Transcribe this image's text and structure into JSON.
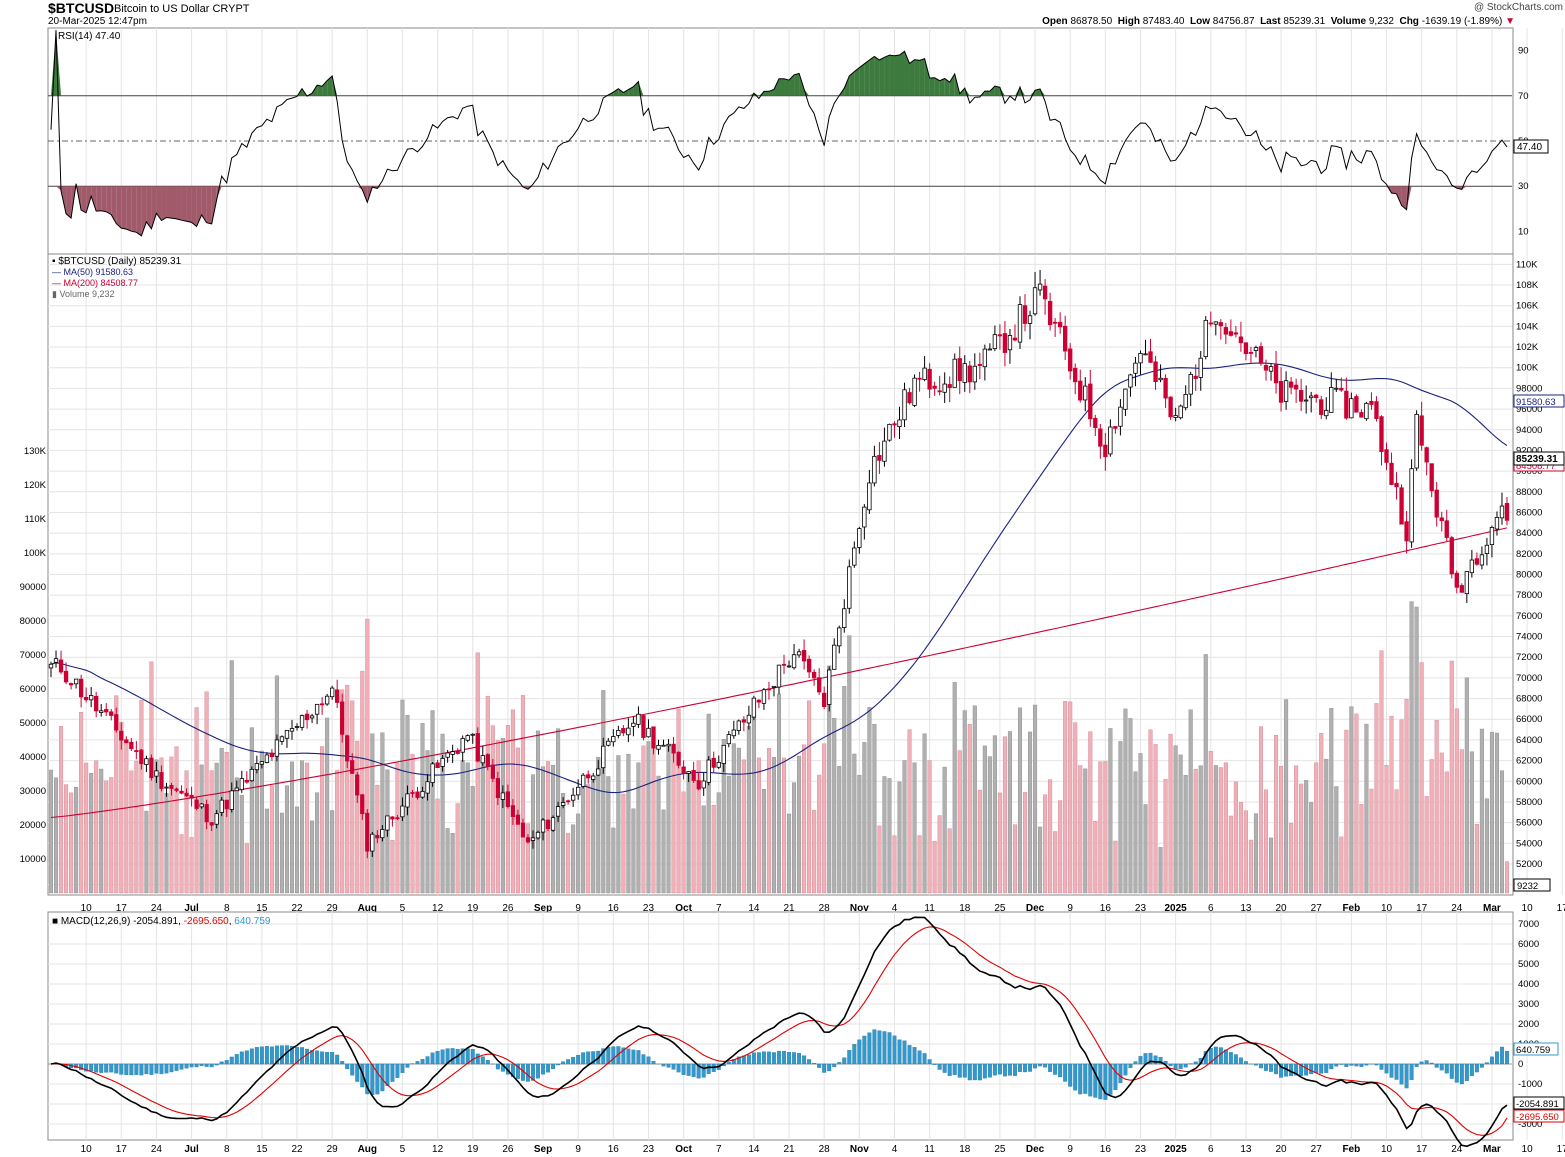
{
  "header": {
    "symbol": "$BTCUSD",
    "name": "Bitcoin to US Dollar",
    "exchange": "CRYPT",
    "datetime": "20-Mar-2025 12:47pm",
    "watermark": "@ StockCharts.com",
    "quote": {
      "open_label": "Open",
      "open": "86878.50",
      "high_label": "High",
      "high": "87483.40",
      "low_label": "Low",
      "low": "84756.87",
      "last_label": "Last",
      "last": "85239.31",
      "volume_label": "Volume",
      "volume": "9,232",
      "chg_label": "Chg",
      "chg": "-1639.19 (-1.89%)"
    }
  },
  "rsi_panel": {
    "legend": "RSI(14) 47.40",
    "current_tag": "47.40",
    "ticks": [
      "90",
      "70",
      "50",
      "30",
      "10"
    ]
  },
  "price_panel": {
    "legend_main": "$BTCUSD (Daily) 85239.31",
    "legend_ma50": "MA(50) 91580.63",
    "legend_ma200": "MA(200) 84508.77",
    "legend_volume": "Volume 9,232",
    "tags": {
      "ma50": "91580.63",
      "last": "85239.31",
      "ma200": "84508.77",
      "volume": "9232"
    },
    "price_ticks": [
      "110K",
      "108K",
      "106K",
      "104K",
      "102K",
      "100K",
      "98000",
      "96000",
      "94000",
      "92000",
      "90000",
      "88000",
      "86000",
      "84000",
      "82000",
      "80000",
      "78000",
      "76000",
      "74000",
      "72000",
      "70000",
      "68000",
      "66000",
      "64000",
      "62000",
      "60000",
      "58000",
      "56000",
      "54000",
      "52000",
      "50000"
    ],
    "volume_ticks": [
      "130K",
      "120K",
      "110K",
      "100K",
      "90000",
      "80000",
      "70000",
      "60000",
      "50000",
      "40000",
      "30000",
      "20000",
      "10000"
    ],
    "date_labels": [
      {
        "label": "10",
        "bold": false
      },
      {
        "label": "17",
        "bold": false
      },
      {
        "label": "24",
        "bold": false
      },
      {
        "label": "Jul",
        "bold": true
      },
      {
        "label": "8",
        "bold": false
      },
      {
        "label": "15",
        "bold": false
      },
      {
        "label": "22",
        "bold": false
      },
      {
        "label": "29",
        "bold": false
      },
      {
        "label": "Aug",
        "bold": true
      },
      {
        "label": "5",
        "bold": false
      },
      {
        "label": "12",
        "bold": false
      },
      {
        "label": "19",
        "bold": false
      },
      {
        "label": "26",
        "bold": false
      },
      {
        "label": "Sep",
        "bold": true
      },
      {
        "label": "9",
        "bold": false
      },
      {
        "label": "16",
        "bold": false
      },
      {
        "label": "23",
        "bold": false
      },
      {
        "label": "Oct",
        "bold": true
      },
      {
        "label": "7",
        "bold": false
      },
      {
        "label": "14",
        "bold": false
      },
      {
        "label": "21",
        "bold": false
      },
      {
        "label": "28",
        "bold": false
      },
      {
        "label": "Nov",
        "bold": true
      },
      {
        "label": "4",
        "bold": false
      },
      {
        "label": "11",
        "bold": false
      },
      {
        "label": "18",
        "bold": false
      },
      {
        "label": "25",
        "bold": false
      },
      {
        "label": "Dec",
        "bold": true
      },
      {
        "label": "9",
        "bold": false
      },
      {
        "label": "16",
        "bold": false
      },
      {
        "label": "23",
        "bold": false
      },
      {
        "label": "2025",
        "bold": true
      },
      {
        "label": "6",
        "bold": false
      },
      {
        "label": "13",
        "bold": false
      },
      {
        "label": "20",
        "bold": false
      },
      {
        "label": "27",
        "bold": false
      },
      {
        "label": "Feb",
        "bold": true
      },
      {
        "label": "10",
        "bold": false
      },
      {
        "label": "17",
        "bold": false
      },
      {
        "label": "24",
        "bold": false
      },
      {
        "label": "Mar",
        "bold": true
      },
      {
        "label": "10",
        "bold": false
      },
      {
        "label": "17",
        "bold": false
      }
    ]
  },
  "macd_panel": {
    "legend_label": "MACD(12,26,9)",
    "legend_macd": "-2054.891",
    "legend_signal": "-2695.650",
    "legend_hist": "640.759",
    "tags": {
      "hist": "640.759",
      "macd": "-2054.891",
      "signal": "-2695.650"
    },
    "ticks": [
      "7000",
      "6000",
      "5000",
      "4000",
      "3000",
      "2000",
      "1000",
      "0",
      "-1000",
      "-2000",
      "-3000"
    ]
  },
  "colors": {
    "up": "#000000",
    "down": "#cc0033",
    "ma50": "#1a237e",
    "ma200": "#cc0033",
    "vol_up": "#b0b0b0",
    "vol_down": "#f0b0b8",
    "rsi_overbought": "#3d7a3d",
    "rsi_oversold": "#a05a6a",
    "macd_line": "#000000",
    "signal_line": "#e00000",
    "histogram": "#3399cc",
    "grid": "#e4e4e4"
  },
  "chart_data": {
    "type": "candlestick",
    "symbol": "$BTCUSD",
    "period": "Daily",
    "date_range": [
      "2024-06-03",
      "2025-03-20"
    ],
    "price_ylim": [
      49000,
      111000
    ],
    "volume_ylim": [
      0,
      135000
    ],
    "rsi_ylim": [
      0,
      100
    ],
    "macd_ylim": [
      -3800,
      7600
    ],
    "key_points": [
      {
        "date": "2024-06-05",
        "close": 71000
      },
      {
        "date": "2024-06-24",
        "close": 60500
      },
      {
        "date": "2024-07-05",
        "close": 56500
      },
      {
        "date": "2024-07-29",
        "close": 69000
      },
      {
        "date": "2024-08-05",
        "close": 54000
      },
      {
        "date": "2024-08-25",
        "close": 64500
      },
      {
        "date": "2024-09-06",
        "close": 53800
      },
      {
        "date": "2024-09-27",
        "close": 66000
      },
      {
        "date": "2024-10-10",
        "close": 60000
      },
      {
        "date": "2024-10-29",
        "close": 72500
      },
      {
        "date": "2024-11-04",
        "close": 67800
      },
      {
        "date": "2024-11-13",
        "close": 90000
      },
      {
        "date": "2024-11-22",
        "close": 98500
      },
      {
        "date": "2024-12-05",
        "close": 100000
      },
      {
        "date": "2024-12-17",
        "close": 107000
      },
      {
        "date": "2024-12-30",
        "close": 92500
      },
      {
        "date": "2025-01-06",
        "close": 102000
      },
      {
        "date": "2025-01-13",
        "close": 94500
      },
      {
        "date": "2025-01-21",
        "close": 106000
      },
      {
        "date": "2025-02-03",
        "close": 97500
      },
      {
        "date": "2025-02-21",
        "close": 96000
      },
      {
        "date": "2025-02-28",
        "close": 84500
      },
      {
        "date": "2025-03-02",
        "close": 94500
      },
      {
        "date": "2025-03-10",
        "close": 78500
      },
      {
        "date": "2025-03-19",
        "close": 86800
      },
      {
        "date": "2025-03-20",
        "close": 85239.31
      }
    ],
    "last": {
      "open": 86878.5,
      "high": 87483.4,
      "low": 84756.87,
      "close": 85239.31,
      "volume": 9232
    },
    "indicators": {
      "ma50": 91580.63,
      "ma200": 84508.77,
      "rsi14": 47.4,
      "macd": -2054.891,
      "signal": -2695.65,
      "histogram": 640.759
    }
  }
}
